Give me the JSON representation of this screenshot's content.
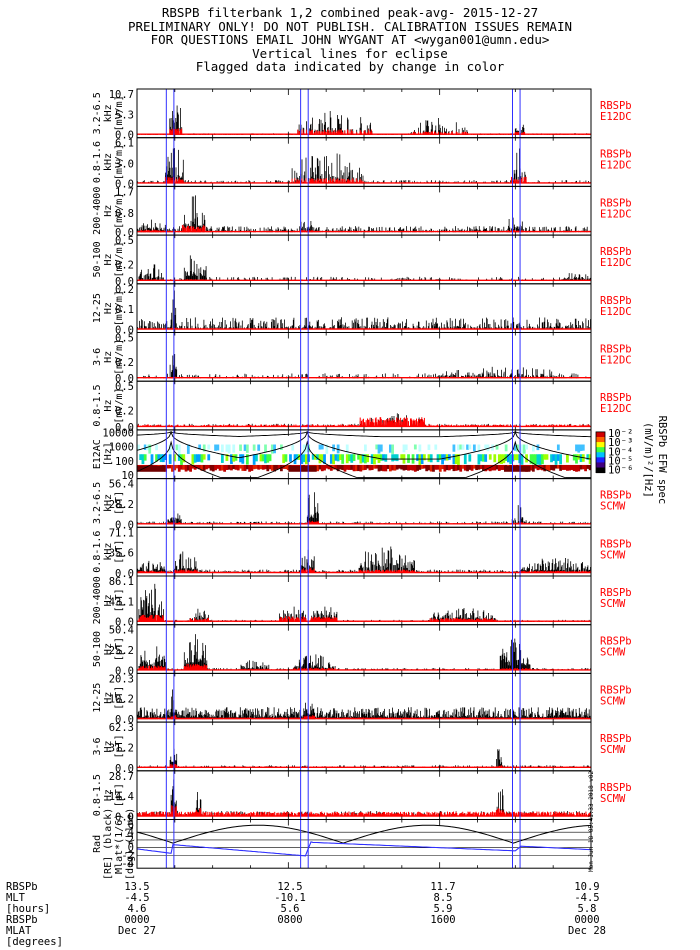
{
  "titles": [
    "RBSPB filterbank 1,2 combined peak-avg- 2015-12-27",
    "PRELIMINARY ONLY! DO NOT PUBLISH. CALIBRATION ISSUES REMAIN",
    "FOR QUESTIONS EMAIL JOHN WYGANT AT <wygan001@umn.edu>",
    "Vertical lines for eclipse",
    "Flagged data indicated by change in color"
  ],
  "colors": {
    "peak": "#000000",
    "avg": "#ff0000",
    "eclipse": "#3030ff",
    "tag": "#ff0000",
    "mlat": "#3030ff"
  },
  "stamp": "Mon Jun 18 05:41:33 2018 v02",
  "footer": {
    "labels": [
      "RBSPb",
      "MLT",
      "[hours]",
      "RBSPb",
      "MLAT",
      "[degrees]"
    ],
    "columns": [
      {
        "rad": "13.5",
        "mlt": "-4.5",
        "mlat": "4.6",
        "time": "0000",
        "date": "Dec 27"
      },
      {
        "rad": "12.5",
        "mlt": "-10.1",
        "mlat": "5.6",
        "time": "0800",
        "date": ""
      },
      {
        "rad": "11.7",
        "mlt": "8.5",
        "mlat": "5.9",
        "time": "1600",
        "date": ""
      },
      {
        "rad": "10.9",
        "mlt": "-4.5",
        "mlat": "5.8",
        "time": "0000",
        "date": "Dec 28"
      }
    ]
  },
  "colorbar": {
    "ticks": [
      "10⁻²",
      "10⁻³",
      "10⁻⁴",
      "10⁻⁵",
      "10⁻⁶"
    ],
    "label": "(mV/m)²/[Hz]",
    "label2": "RBSPb EFW spec"
  },
  "chart_data": {
    "type": "line",
    "x_axis": {
      "unit": "UT",
      "range_hours": [
        0,
        24
      ],
      "ticks": [
        "0000",
        "0800",
        "1600",
        "0000"
      ]
    },
    "eclipse_lines_hours": [
      1.55,
      1.95,
      8.65,
      9.05,
      19.85,
      20.25
    ],
    "panels": [
      {
        "ylabel": [
          "3.2-6.5",
          "kHz",
          "[mV/m]"
        ],
        "yticks": [
          "10.7",
          "5.3",
          "0.0"
        ],
        "ymax": 10.7,
        "tag": [
          "RBSPb",
          "E12DC"
        ],
        "segments": [
          {
            "start": 0,
            "end": 24,
            "peak": 0.4,
            "avg": 0.08,
            "dense": 0.5
          },
          {
            "start": 1.7,
            "end": 2.4,
            "peak": 9.2,
            "avg": 1.8,
            "dense": 0.9
          },
          {
            "start": 8.5,
            "end": 12.5,
            "peak": 6.5,
            "avg": 1.4,
            "dense": 0.6
          },
          {
            "start": 14.5,
            "end": 17.5,
            "peak": 4.5,
            "avg": 0.9,
            "dense": 0.55
          },
          {
            "start": 20.0,
            "end": 20.5,
            "peak": 3.5,
            "avg": 0.8,
            "dense": 0.8
          }
        ]
      },
      {
        "ylabel": [
          "0.8-1.6",
          "kHz",
          "[mV/m]"
        ],
        "yticks": [
          "6.1",
          "3.0",
          "0.0"
        ],
        "ymax": 6.1,
        "tag": [
          "RBSPb",
          "E12DC"
        ],
        "segments": [
          {
            "start": 0,
            "end": 24,
            "peak": 0.5,
            "avg": 0.1,
            "dense": 0.6
          },
          {
            "start": 1.5,
            "end": 2.5,
            "peak": 5.5,
            "avg": 1.0,
            "dense": 0.9
          },
          {
            "start": 8.2,
            "end": 12.0,
            "peak": 4.8,
            "avg": 0.8,
            "dense": 0.6
          },
          {
            "start": 19.8,
            "end": 20.6,
            "peak": 5.5,
            "avg": 1.0,
            "dense": 0.8
          }
        ]
      },
      {
        "ylabel": [
          "200-4000",
          "Hz",
          "[mV/m]"
        ],
        "yticks": [
          "1.7",
          "0.8",
          "0.0"
        ],
        "ymax": 1.7,
        "tag": [
          "RBSPb",
          "E12DC"
        ],
        "segments": [
          {
            "start": 0,
            "end": 24,
            "peak": 0.25,
            "avg": 0.04,
            "dense": 0.7
          },
          {
            "start": 0.2,
            "end": 1.5,
            "peak": 0.55,
            "avg": 0.1,
            "dense": 0.8
          },
          {
            "start": 2.4,
            "end": 3.6,
            "peak": 1.6,
            "avg": 0.3,
            "dense": 0.95
          },
          {
            "start": 8.6,
            "end": 9.3,
            "peak": 0.7,
            "avg": 0.1,
            "dense": 0.8
          },
          {
            "start": 19.6,
            "end": 20.4,
            "peak": 0.8,
            "avg": 0.1,
            "dense": 0.8
          }
        ]
      },
      {
        "ylabel": [
          "50-100",
          "Hz",
          "[mV/m]"
        ],
        "yticks": [
          "0.5",
          "0.2",
          "0.0"
        ],
        "ymax": 0.5,
        "tag": [
          "RBSPb",
          "E12DC"
        ],
        "segments": [
          {
            "start": 0,
            "end": 24,
            "peak": 0.05,
            "avg": 0.01,
            "dense": 0.4
          },
          {
            "start": 0.1,
            "end": 1.4,
            "peak": 0.22,
            "avg": 0.02,
            "dense": 0.8
          },
          {
            "start": 2.5,
            "end": 3.7,
            "peak": 0.38,
            "avg": 0.02,
            "dense": 0.85
          },
          {
            "start": 22.5,
            "end": 24,
            "peak": 0.12,
            "avg": 0.01,
            "dense": 0.7
          }
        ]
      },
      {
        "ylabel": [
          "12-25",
          "Hz",
          "[mV/m]"
        ],
        "yticks": [
          "0.2",
          "0.1",
          "0.0"
        ],
        "ymax": 0.2,
        "tag": [
          "RBSPb",
          "E12DC"
        ],
        "segments": [
          {
            "start": 0,
            "end": 24,
            "peak": 0.06,
            "avg": 0.005,
            "dense": 0.6
          },
          {
            "start": 1.8,
            "end": 2.1,
            "peak": 0.2,
            "avg": 0.01,
            "dense": 0.9
          }
        ]
      },
      {
        "ylabel": [
          "3-6",
          "Hz",
          "[mV/m]"
        ],
        "yticks": [
          "0.5",
          "0.2",
          "0.0"
        ],
        "ymax": 0.5,
        "tag": [
          "RBSPb",
          "E12DC"
        ],
        "segments": [
          {
            "start": 0,
            "end": 24,
            "peak": 0.06,
            "avg": 0.01,
            "dense": 0.35
          },
          {
            "start": 1.75,
            "end": 2.1,
            "peak": 0.5,
            "avg": 0.02,
            "dense": 0.95
          },
          {
            "start": 15.8,
            "end": 22.5,
            "peak": 0.15,
            "avg": 0.02,
            "dense": 0.5
          }
        ]
      },
      {
        "ylabel": [
          "0.8-1.5",
          "Hz",
          "[mV/m]"
        ],
        "yticks": [
          "0.5",
          "0.2",
          "0.0"
        ],
        "ymax": 0.5,
        "tag": [
          "RBSPb",
          "E12DC"
        ],
        "segments": [
          {
            "start": 0,
            "end": 24,
            "peak": 0.04,
            "avg": 0.03,
            "dense": 0.5
          },
          {
            "start": 11.8,
            "end": 15.2,
            "peak": 0.17,
            "avg": 0.12,
            "dense": 0.8
          }
        ]
      },
      {
        "type": "spectrogram",
        "ylabel": [
          "E12AC",
          "[Hz]"
        ],
        "yticks": [
          "10000",
          "1000",
          "100",
          "10"
        ],
        "tag": []
      },
      {
        "ylabel": [
          "3.2-6.5",
          "kHz",
          "[pT]"
        ],
        "yticks": [
          "56.4",
          "28.2",
          "0.0"
        ],
        "ymax": 56.4,
        "tag": [
          "RBSPb",
          "SCMW"
        ],
        "segments": [
          {
            "start": 0,
            "end": 24,
            "peak": 4,
            "avg": 0.8,
            "dense": 0.8
          },
          {
            "start": 1.6,
            "end": 2.4,
            "peak": 30,
            "avg": 3,
            "dense": 0.9
          },
          {
            "start": 9.0,
            "end": 9.6,
            "peak": 56,
            "avg": 6,
            "dense": 0.95
          },
          {
            "start": 19.8,
            "end": 20.6,
            "peak": 28,
            "avg": 3,
            "dense": 0.85
          }
        ]
      },
      {
        "ylabel": [
          "0.8-1.6",
          "kHz",
          "[pT]"
        ],
        "yticks": [
          "71.1",
          "35.6",
          "0.0"
        ],
        "ymax": 71.1,
        "tag": [
          "RBSPb",
          "SCMW"
        ],
        "segments": [
          {
            "start": 0,
            "end": 24,
            "peak": 6,
            "avg": 1,
            "dense": 0.9
          },
          {
            "start": 0,
            "end": 1.5,
            "peak": 24,
            "avg": 4,
            "dense": 0.95
          },
          {
            "start": 2.0,
            "end": 3.2,
            "peak": 40,
            "avg": 6,
            "dense": 0.9
          },
          {
            "start": 8.7,
            "end": 9.4,
            "peak": 60,
            "avg": 9,
            "dense": 0.9
          },
          {
            "start": 11.7,
            "end": 14.7,
            "peak": 55,
            "avg": 6,
            "dense": 0.7
          },
          {
            "start": 20.3,
            "end": 24,
            "peak": 28,
            "avg": 4,
            "dense": 0.9
          }
        ]
      },
      {
        "ylabel": [
          "200-4000",
          "Hz",
          "[pT]"
        ],
        "yticks": [
          "86.1",
          "43.1",
          "0.0"
        ],
        "ymax": 86.1,
        "tag": [
          "RBSPb",
          "SCMW"
        ],
        "segments": [
          {
            "start": 0,
            "end": 24,
            "peak": 4,
            "avg": 1.5,
            "dense": 0.7
          },
          {
            "start": 0.1,
            "end": 1.4,
            "peak": 86,
            "avg": 15,
            "dense": 0.95
          },
          {
            "start": 2.8,
            "end": 3.8,
            "peak": 30,
            "avg": 8,
            "dense": 0.9
          },
          {
            "start": 7.5,
            "end": 9.0,
            "peak": 35,
            "avg": 12,
            "dense": 0.9
          },
          {
            "start": 9.2,
            "end": 10.6,
            "peak": 35,
            "avg": 11,
            "dense": 0.9
          },
          {
            "start": 15.5,
            "end": 19.0,
            "peak": 30,
            "avg": 8,
            "dense": 0.9
          }
        ]
      },
      {
        "ylabel": [
          "50-100",
          "Hz",
          "[pT]"
        ],
        "yticks": [
          "50.4",
          "25.2",
          "0.0"
        ],
        "ymax": 50.4,
        "tag": [
          "RBSPb",
          "SCMW"
        ],
        "segments": [
          {
            "start": 0,
            "end": 24,
            "peak": 3,
            "avg": 0.5,
            "dense": 0.8
          },
          {
            "start": 0.1,
            "end": 1.5,
            "peak": 35,
            "avg": 6,
            "dense": 0.95
          },
          {
            "start": 2.5,
            "end": 3.7,
            "peak": 48,
            "avg": 8,
            "dense": 0.95
          },
          {
            "start": 5.5,
            "end": 7.0,
            "peak": 14,
            "avg": 2,
            "dense": 0.9
          },
          {
            "start": 8.3,
            "end": 10.5,
            "peak": 20,
            "avg": 3,
            "dense": 0.9
          },
          {
            "start": 19.2,
            "end": 20.8,
            "peak": 40,
            "avg": 3,
            "dense": 0.9
          }
        ]
      },
      {
        "ylabel": [
          "12-25",
          "Hz",
          "[pT]"
        ],
        "yticks": [
          "20.3",
          "10.2",
          "0.0"
        ],
        "ymax": 20.3,
        "tag": [
          "RBSPb",
          "SCMW"
        ],
        "segments": [
          {
            "start": 0,
            "end": 24,
            "peak": 6,
            "avg": 0.8,
            "dense": 0.98
          },
          {
            "start": 1.8,
            "end": 2.1,
            "peak": 20,
            "avg": 2,
            "dense": 0.95
          },
          {
            "start": 8.8,
            "end": 9.4,
            "peak": 12,
            "avg": 2,
            "dense": 0.9
          }
        ]
      },
      {
        "ylabel": [
          "3-6",
          "Hz",
          "[pT]"
        ],
        "yticks": [
          "62.3",
          "31.2",
          "0.0"
        ],
        "ymax": 62.3,
        "tag": [
          "RBSPb",
          "SCMW"
        ],
        "segments": [
          {
            "start": 0,
            "end": 24,
            "peak": 4,
            "avg": 2.0,
            "dense": 0.7
          },
          {
            "start": 1.75,
            "end": 2.1,
            "peak": 60,
            "avg": 6,
            "dense": 0.95
          },
          {
            "start": 19.0,
            "end": 19.3,
            "peak": 40,
            "avg": 4,
            "dense": 0.9
          }
        ]
      },
      {
        "ylabel": [
          "0.8-1.5",
          "Hz",
          "[pT]"
        ],
        "yticks": [
          "28.7",
          "14.4",
          "0.0"
        ],
        "ymax": 28.7,
        "tag": [
          "RBSPb",
          "SCMW"
        ],
        "segments": [
          {
            "start": 0,
            "end": 24,
            "peak": 4,
            "avg": 3.5,
            "dense": 0.8
          },
          {
            "start": 1.8,
            "end": 2.1,
            "peak": 28,
            "avg": 8,
            "dense": 0.9
          },
          {
            "start": 3.1,
            "end": 3.4,
            "peak": 25,
            "avg": 6,
            "dense": 0.9
          },
          {
            "start": 19.0,
            "end": 19.4,
            "peak": 26,
            "avg": 6,
            "dense": 0.9
          }
        ]
      },
      {
        "type": "ephemeris",
        "ylabel": [
          "Rad",
          "[RE] (black)",
          "Mlat*(1/6)",
          "[deg] (blue)"
        ],
        "yticks": [
          "6",
          "4",
          "2",
          "0",
          "-2",
          "-4"
        ],
        "ymin": -4.5,
        "ymax": 6.5,
        "tag": []
      }
    ]
  }
}
